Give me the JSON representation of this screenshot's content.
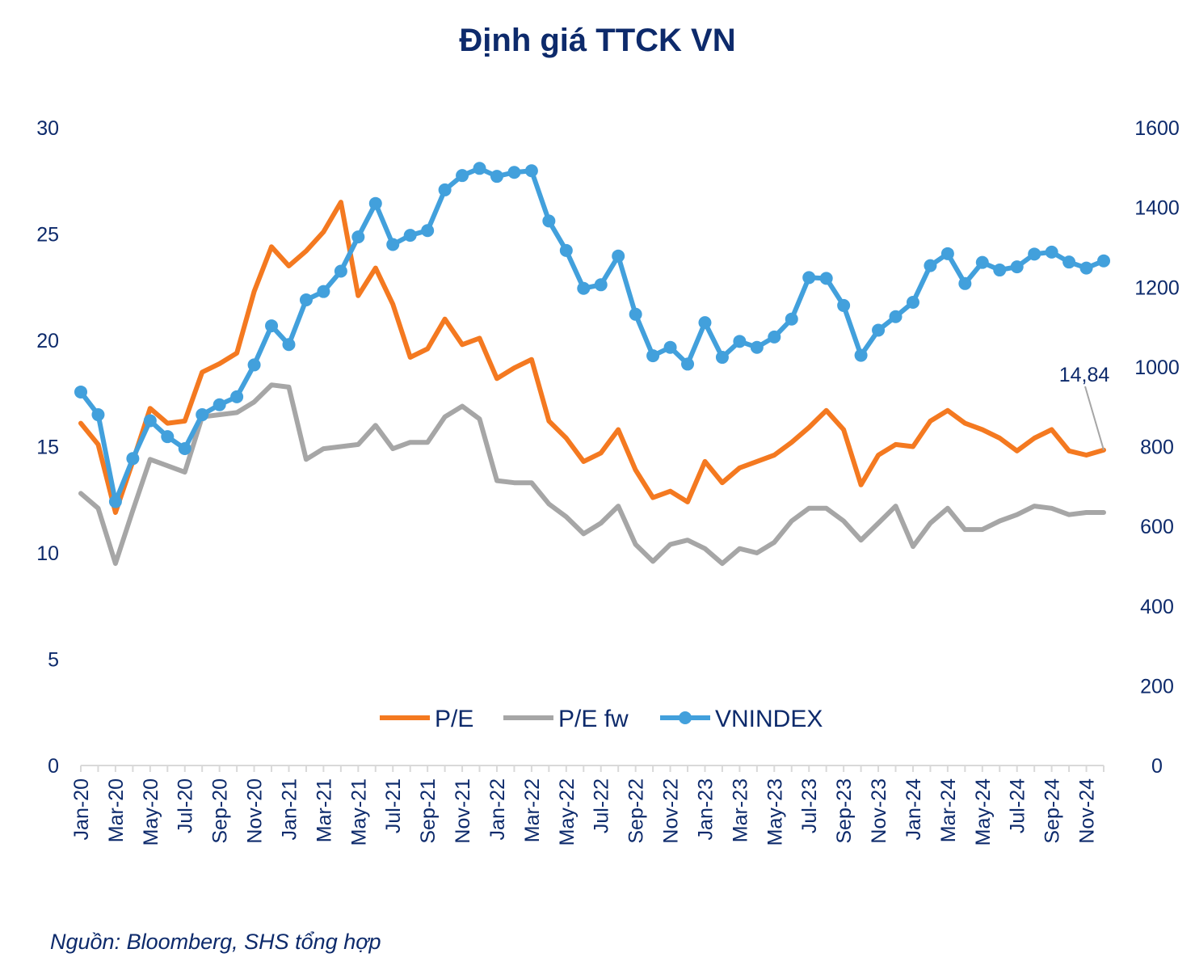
{
  "chart_data": {
    "type": "line",
    "title": "Định giá TTCK VN",
    "source": "Nguồn: Bloomberg, SHS tổng hợp",
    "y_left": {
      "ticks": [
        "0",
        "5",
        "10",
        "15",
        "20",
        "25",
        "30"
      ],
      "ylim": [
        0,
        30
      ]
    },
    "y_right": {
      "ticks": [
        "0",
        "200",
        "400",
        "600",
        "800",
        "1000",
        "1200",
        "1400",
        "1600"
      ],
      "ylim": [
        0,
        1600
      ]
    },
    "x_tick_labels": [
      "Jan-20",
      "Mar-20",
      "May-20",
      "Jul-20",
      "Sep-20",
      "Nov-20",
      "Jan-21",
      "Mar-21",
      "May-21",
      "Jul-21",
      "Sep-21",
      "Nov-21",
      "Jan-22",
      "Mar-22",
      "May-22",
      "Jul-22",
      "Sep-22",
      "Nov-22",
      "Jan-23",
      "Mar-23",
      "May-23",
      "Jul-23",
      "Sep-23",
      "Nov-23",
      "Jan-24",
      "Mar-24",
      "May-24",
      "Jul-24",
      "Sep-24",
      "Nov-24"
    ],
    "x": [
      "Jan-20",
      "Feb-20",
      "Mar-20",
      "Apr-20",
      "May-20",
      "Jun-20",
      "Jul-20",
      "Aug-20",
      "Sep-20",
      "Oct-20",
      "Nov-20",
      "Dec-20",
      "Jan-21",
      "Feb-21",
      "Mar-21",
      "Apr-21",
      "May-21",
      "Jun-21",
      "Jul-21",
      "Aug-21",
      "Sep-21",
      "Oct-21",
      "Nov-21",
      "Dec-21",
      "Jan-22",
      "Feb-22",
      "Mar-22",
      "Apr-22",
      "May-22",
      "Jun-22",
      "Jul-22",
      "Aug-22",
      "Sep-22",
      "Oct-22",
      "Nov-22",
      "Dec-22",
      "Jan-23",
      "Feb-23",
      "Mar-23",
      "Apr-23",
      "May-23",
      "Jun-23",
      "Jul-23",
      "Aug-23",
      "Sep-23",
      "Oct-23",
      "Nov-23",
      "Dec-23",
      "Jan-24",
      "Feb-24",
      "Mar-24",
      "Apr-24",
      "May-24",
      "Jun-24",
      "Jul-24",
      "Aug-24",
      "Sep-24",
      "Oct-24",
      "Nov-24",
      "Dec-24"
    ],
    "series": [
      {
        "name": "P/E",
        "axis": "left",
        "color": "#f47920",
        "values": [
          16.1,
          15.1,
          11.9,
          14.3,
          16.8,
          16.1,
          16.2,
          18.5,
          18.9,
          19.4,
          22.3,
          24.4,
          23.5,
          24.2,
          25.1,
          26.5,
          22.1,
          23.4,
          21.7,
          19.2,
          19.6,
          21.0,
          19.8,
          20.1,
          18.2,
          18.7,
          19.1,
          16.2,
          15.4,
          14.3,
          14.7,
          15.8,
          13.9,
          12.6,
          12.9,
          12.4,
          14.3,
          13.3,
          14.0,
          14.3,
          14.6,
          15.2,
          15.9,
          16.7,
          15.8,
          13.2,
          14.6,
          15.1,
          15.0,
          16.2,
          16.7,
          16.1,
          15.8,
          15.4,
          14.8,
          15.4,
          15.8,
          14.8,
          14.6,
          14.84
        ]
      },
      {
        "name": "P/E fw",
        "axis": "left",
        "color": "#a6a6a6",
        "values": [
          12.8,
          12.1,
          9.5,
          12.0,
          14.4,
          14.1,
          13.8,
          16.4,
          16.5,
          16.6,
          17.1,
          17.9,
          17.8,
          14.4,
          14.9,
          15.0,
          15.1,
          16.0,
          14.9,
          15.2,
          15.2,
          16.4,
          16.9,
          16.3,
          13.4,
          13.3,
          13.3,
          12.3,
          11.7,
          10.9,
          11.4,
          12.2,
          10.4,
          9.6,
          10.4,
          10.6,
          10.2,
          9.5,
          10.2,
          10.0,
          10.5,
          11.5,
          12.1,
          12.1,
          11.5,
          10.6,
          11.4,
          12.2,
          10.3,
          11.4,
          12.1,
          11.1,
          11.1,
          11.5,
          11.8,
          12.2,
          12.1,
          11.8,
          11.9,
          11.9
        ]
      },
      {
        "name": "VNINDEX",
        "axis": "right",
        "color": "#42a0dc",
        "markers": true,
        "values": [
          937,
          880,
          662,
          770,
          865,
          825,
          795,
          880,
          905,
          925,
          1005,
          1103,
          1056,
          1168,
          1189,
          1240,
          1326,
          1410,
          1307,
          1330,
          1342,
          1444,
          1480,
          1498,
          1478,
          1488,
          1492,
          1366,
          1292,
          1197,
          1206,
          1278,
          1132,
          1028,
          1049,
          1007,
          1111,
          1024,
          1064,
          1049,
          1075,
          1120,
          1224,
          1222,
          1154,
          1029,
          1092,
          1126,
          1162,
          1254,
          1284,
          1209,
          1262,
          1243,
          1251,
          1283,
          1288,
          1263,
          1248,
          1266
        ]
      }
    ],
    "legend": {
      "position": "bottom-center",
      "entries": [
        "P/E",
        "P/E fw",
        "VNINDEX"
      ]
    },
    "annotation": {
      "label": "14,84",
      "series": "P/E",
      "x": "Dec-24"
    },
    "grid": false
  }
}
